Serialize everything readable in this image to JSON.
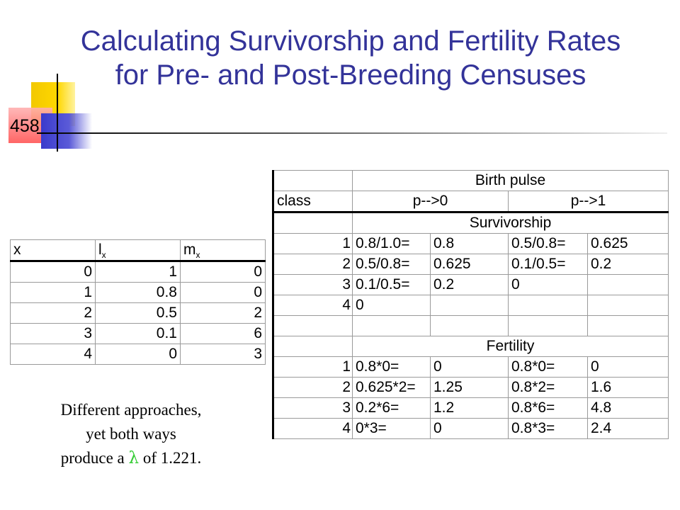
{
  "slide": {
    "title_line1": "Calculating Survivorship and Fertility Rates",
    "title_line2": "for Pre- and Post-Breeding Censuses",
    "number": "458"
  },
  "left_table": {
    "headers": [
      "x",
      "l",
      "x",
      "m",
      "x"
    ],
    "rows": [
      [
        "0",
        "1",
        "0"
      ],
      [
        "1",
        "0.8",
        "0"
      ],
      [
        "2",
        "0.5",
        "2"
      ],
      [
        "3",
        "0.1",
        "6"
      ],
      [
        "4",
        "0",
        "3"
      ]
    ]
  },
  "right_table": {
    "birth_pulse": "Birth pulse",
    "class_label": "class",
    "col_pre": "p-->0",
    "col_post": "p-->1",
    "survivorship_label": "Survivorship",
    "fertility_label": "Fertility",
    "survivorship_rows": [
      [
        "1",
        "0.8/1.0=",
        "0.8",
        "0.5/0.8=",
        "0.625"
      ],
      [
        "2",
        "0.5/0.8=",
        "0.625",
        "0.1/0.5=",
        "0.2"
      ],
      [
        "3",
        "0.1/0.5=",
        "0.2",
        "0",
        ""
      ],
      [
        "4",
        "0",
        "",
        "",
        ""
      ]
    ],
    "fertility_rows": [
      [
        "1",
        "0.8*0=",
        "0",
        "0.8*0=",
        "0"
      ],
      [
        "2",
        "0.625*2=",
        "1.25",
        "0.8*2=",
        "1.6"
      ],
      [
        "3",
        "0.2*6=",
        "1.2",
        "0.8*6=",
        "4.8"
      ],
      [
        "4",
        "0*3=",
        "0",
        "0.8*3=",
        "2.4"
      ]
    ]
  },
  "caption": {
    "line1": "Different approaches,",
    "line2": "yet both ways",
    "line3_pre": "produce a ",
    "lambda": "λ",
    "line3_post": " of 1.221."
  }
}
